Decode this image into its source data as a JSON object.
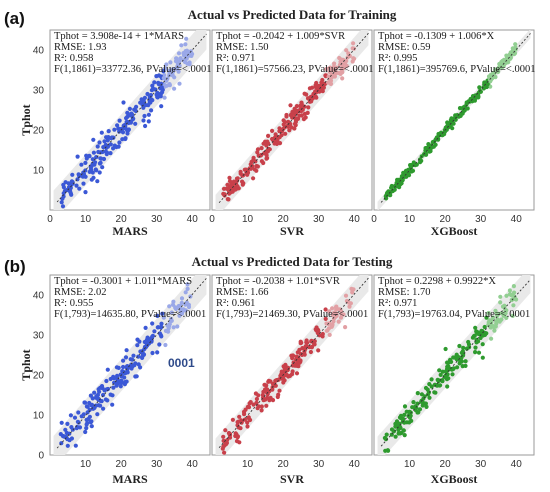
{
  "panels": [
    {
      "label": "(a)",
      "title": "Actual vs Predicted Data for Training",
      "ylabel": "Tphot",
      "n": 260,
      "annotation": "",
      "subplots": [
        {
          "name": "MARS",
          "xlabel": "MARS",
          "color": "#3b58d6",
          "light": "#9aa8e8",
          "stats": [
            "Tphot = 3.908e-14 + 1*MARS",
            "RMSE: 1.93",
            "R²: 0.958",
            "F(1,1861)=33772.36, PValue=<.0001"
          ],
          "intercept": 0.0,
          "slope": 1.0,
          "rmse": 1.93
        },
        {
          "name": "SVR",
          "xlabel": "SVR",
          "color": "#c8404a",
          "light": "#e2a0a4",
          "stats": [
            "Tphot = -0.2042 + 1.009*SVR",
            "RMSE: 1.50",
            "R²: 0.971",
            "F(1,1861)=57566.23, PValue=<.0001"
          ],
          "intercept": -0.2042,
          "slope": 1.009,
          "rmse": 1.5
        },
        {
          "name": "XGBoost",
          "xlabel": "XGBoost",
          "color": "#2e9a2e",
          "light": "#92cf92",
          "stats": [
            "Tphot = -0.1309 + 1.006*X",
            "RMSE: 0.59",
            "R²: 0.995",
            "F(1,1861)=395769.6, PValue=<.0001"
          ],
          "intercept": -0.1309,
          "slope": 1.006,
          "rmse": 0.59
        }
      ]
    },
    {
      "label": "(b)",
      "title": "Actual vs Predicted Data for Testing",
      "ylabel": "Tphot",
      "n": 220,
      "annotation": "0001",
      "subplots": [
        {
          "name": "MARS",
          "xlabel": "MARS",
          "color": "#3b58d6",
          "light": "#9aa8e8",
          "stats": [
            "Tphot = -0.3001 + 1.011*MARS",
            "RMSE: 2.02",
            "R²: 0.955",
            "F(1,793)=14635.80, PValue=<.0001"
          ],
          "intercept": -0.3001,
          "slope": 1.011,
          "rmse": 2.02
        },
        {
          "name": "SVR",
          "xlabel": "SVR",
          "color": "#c8404a",
          "light": "#e2a0a4",
          "stats": [
            "Tphot = -0.2038 + 1.01*SVR",
            "RMSE: 1.66",
            "R²: 0.961",
            "F(1,793)=21469.30, PValue=<.0001"
          ],
          "intercept": -0.2038,
          "slope": 1.01,
          "rmse": 1.66
        },
        {
          "name": "XGBoost",
          "xlabel": "XGBoost",
          "color": "#2e9a2e",
          "light": "#92cf92",
          "stats": [
            "Tphot = 0.2298 + 0.9922*X",
            "RMSE: 1.70",
            "R²: 0.971",
            "F(1,793)=19763.04, PValue=<.0001"
          ],
          "intercept": 0.2298,
          "slope": 0.9922,
          "rmse": 1.7
        }
      ]
    }
  ],
  "chart_data": [
    {
      "type": "scatter",
      "title": "Actual vs Predicted Data for Training",
      "ylabel": "Tphot",
      "xlim": [
        0,
        45
      ],
      "ylim": [
        0,
        45
      ],
      "x_ticks": [
        0,
        10,
        20,
        30,
        40
      ],
      "y_ticks": [
        10,
        20,
        30,
        40
      ],
      "series": [
        {
          "name": "MARS",
          "intercept": 0.0,
          "slope": 1.0,
          "rmse": 1.93,
          "r2": 0.958
        },
        {
          "name": "SVR",
          "intercept": -0.2042,
          "slope": 1.009,
          "rmse": 1.5,
          "r2": 0.971
        },
        {
          "name": "XGBoost",
          "intercept": -0.1309,
          "slope": 1.006,
          "rmse": 0.59,
          "r2": 0.995
        }
      ]
    },
    {
      "type": "scatter",
      "title": "Actual vs Predicted Data for Testing",
      "ylabel": "Tphot",
      "xlim": [
        0,
        45
      ],
      "ylim": [
        0,
        45
      ],
      "x_ticks": [
        10,
        20,
        30,
        40
      ],
      "y_ticks": [
        0,
        10,
        20,
        30,
        40
      ],
      "series": [
        {
          "name": "MARS",
          "intercept": -0.3001,
          "slope": 1.011,
          "rmse": 2.02,
          "r2": 0.955
        },
        {
          "name": "SVR",
          "intercept": -0.2038,
          "slope": 1.01,
          "rmse": 1.66,
          "r2": 0.961
        },
        {
          "name": "XGBoost",
          "intercept": 0.2298,
          "slope": 0.9922,
          "rmse": 1.7,
          "r2": 0.971
        }
      ]
    }
  ],
  "axis": {
    "panel_a": {
      "xticks": [
        "0",
        "10",
        "20",
        "30",
        "40"
      ],
      "yticks": [
        "10",
        "20",
        "30",
        "40"
      ]
    },
    "panel_b": {
      "xticks": [
        "10",
        "20",
        "30",
        "40"
      ],
      "yticks": [
        "0",
        "10",
        "20",
        "30",
        "40"
      ]
    }
  }
}
